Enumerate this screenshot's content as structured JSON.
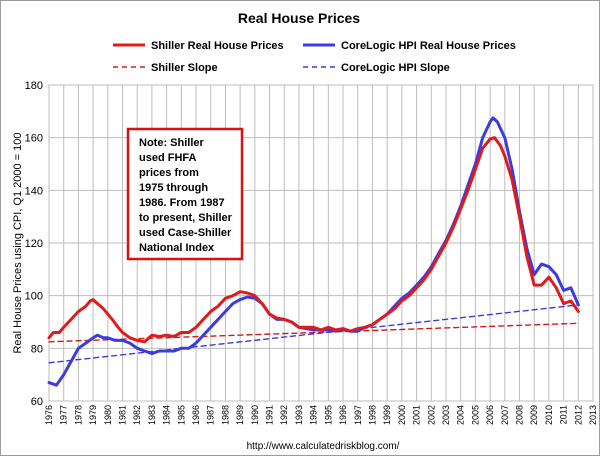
{
  "chart_data": {
    "type": "line",
    "title": "Real House Prices",
    "ylabel": "Real House Prices using CPI, Q1 2000 = 100",
    "xlabel": "",
    "source": "http://www.calculatedriskblog.com/",
    "xlim": [
      1976,
      2013
    ],
    "ylim": [
      60,
      180
    ],
    "yticks": [
      60,
      80,
      100,
      120,
      140,
      160,
      180
    ],
    "xticks": [
      "1976",
      "1977",
      "1978",
      "1979",
      "1980",
      "1981",
      "1982",
      "1983",
      "1984",
      "1985",
      "1986",
      "1987",
      "1988",
      "1989",
      "1990",
      "1991",
      "1992",
      "1993",
      "1994",
      "1995",
      "1996",
      "1997",
      "1998",
      "1999",
      "2000",
      "2001",
      "2002",
      "2003",
      "2004",
      "2005",
      "2006",
      "2007",
      "2008",
      "2009",
      "2010",
      "2011",
      "2012",
      "2013"
    ],
    "grid": true,
    "legend_position": "top",
    "note": [
      "Note: Shiller",
      "used FHFA",
      "prices from",
      "1975 through",
      "1986.  From 1987",
      "to present, Shiller",
      "used Case-Shiller",
      "National Index"
    ],
    "note_color": "#dd1111",
    "series": [
      {
        "name": "Shiller Real House Prices",
        "style": "solid",
        "color": "#e01b1b",
        "points": [
          [
            1976.0,
            84
          ],
          [
            1976.3,
            86
          ],
          [
            1976.7,
            86
          ],
          [
            1977.0,
            88
          ],
          [
            1977.5,
            91
          ],
          [
            1978.0,
            94
          ],
          [
            1978.5,
            96
          ],
          [
            1978.8,
            98
          ],
          [
            1979.0,
            98.5
          ],
          [
            1979.3,
            97
          ],
          [
            1979.7,
            95
          ],
          [
            1980.0,
            93
          ],
          [
            1980.3,
            91
          ],
          [
            1980.7,
            88
          ],
          [
            1981.0,
            86
          ],
          [
            1981.5,
            84
          ],
          [
            1982.0,
            83
          ],
          [
            1982.5,
            82.5
          ],
          [
            1983.0,
            85
          ],
          [
            1983.5,
            84.5
          ],
          [
            1984.0,
            85
          ],
          [
            1984.5,
            84.5
          ],
          [
            1985.0,
            86
          ],
          [
            1985.5,
            86
          ],
          [
            1986.0,
            88
          ],
          [
            1986.5,
            91
          ],
          [
            1987.0,
            94
          ],
          [
            1987.5,
            96
          ],
          [
            1988.0,
            99
          ],
          [
            1988.5,
            100
          ],
          [
            1989.0,
            101.5
          ],
          [
            1989.5,
            101
          ],
          [
            1990.0,
            100
          ],
          [
            1990.5,
            97
          ],
          [
            1991.0,
            93
          ],
          [
            1991.5,
            91.5
          ],
          [
            1992.0,
            91
          ],
          [
            1992.5,
            90
          ],
          [
            1993.0,
            88
          ],
          [
            1993.5,
            88
          ],
          [
            1994.0,
            88
          ],
          [
            1994.5,
            87
          ],
          [
            1995.0,
            88
          ],
          [
            1995.5,
            87
          ],
          [
            1996.0,
            87.5
          ],
          [
            1996.5,
            86.5
          ],
          [
            1997.0,
            87.5
          ],
          [
            1997.5,
            88
          ],
          [
            1998.0,
            89
          ],
          [
            1998.5,
            91
          ],
          [
            1999.0,
            93
          ],
          [
            1999.5,
            95
          ],
          [
            2000.0,
            98
          ],
          [
            2000.5,
            100
          ],
          [
            2001.0,
            103
          ],
          [
            2001.5,
            106
          ],
          [
            2002.0,
            110
          ],
          [
            2002.5,
            115
          ],
          [
            2003.0,
            120
          ],
          [
            2003.5,
            126
          ],
          [
            2004.0,
            133
          ],
          [
            2004.5,
            140
          ],
          [
            2005.0,
            148
          ],
          [
            2005.5,
            156
          ],
          [
            2006.0,
            159.5
          ],
          [
            2006.3,
            160
          ],
          [
            2006.7,
            157
          ],
          [
            2007.0,
            153
          ],
          [
            2007.5,
            144
          ],
          [
            2008.0,
            130
          ],
          [
            2008.5,
            115
          ],
          [
            2009.0,
            104
          ],
          [
            2009.5,
            104
          ],
          [
            2010.0,
            107
          ],
          [
            2010.5,
            103
          ],
          [
            2011.0,
            97
          ],
          [
            2011.5,
            98
          ],
          [
            2012.0,
            94
          ]
        ]
      },
      {
        "name": "CoreLogic HPI Real House Prices",
        "style": "solid",
        "color": "#3b3be0",
        "points": [
          [
            1976.0,
            67
          ],
          [
            1976.5,
            66
          ],
          [
            1977.0,
            70
          ],
          [
            1977.5,
            75
          ],
          [
            1978.0,
            80
          ],
          [
            1978.5,
            82
          ],
          [
            1979.0,
            84
          ],
          [
            1979.3,
            85
          ],
          [
            1979.7,
            84
          ],
          [
            1980.0,
            84
          ],
          [
            1980.5,
            83
          ],
          [
            1981.0,
            83
          ],
          [
            1981.5,
            82
          ],
          [
            1982.0,
            80
          ],
          [
            1982.5,
            79
          ],
          [
            1983.0,
            78
          ],
          [
            1983.5,
            79
          ],
          [
            1984.0,
            79
          ],
          [
            1984.5,
            79
          ],
          [
            1985.0,
            80
          ],
          [
            1985.5,
            80
          ],
          [
            1986.0,
            82
          ],
          [
            1986.5,
            85
          ],
          [
            1987.0,
            88
          ],
          [
            1987.5,
            91
          ],
          [
            1988.0,
            94
          ],
          [
            1988.5,
            97
          ],
          [
            1989.0,
            98.5
          ],
          [
            1989.5,
            99.5
          ],
          [
            1990.0,
            99
          ],
          [
            1990.5,
            97
          ],
          [
            1991.0,
            93
          ],
          [
            1991.5,
            91
          ],
          [
            1992.0,
            91
          ],
          [
            1992.5,
            90
          ],
          [
            1993.0,
            88
          ],
          [
            1993.5,
            87.5
          ],
          [
            1994.0,
            87
          ],
          [
            1994.5,
            87
          ],
          [
            1995.0,
            87
          ],
          [
            1995.5,
            86.5
          ],
          [
            1996.0,
            87
          ],
          [
            1996.5,
            86.5
          ],
          [
            1997.0,
            86.5
          ],
          [
            1997.5,
            88
          ],
          [
            1998.0,
            89
          ],
          [
            1998.5,
            91
          ],
          [
            1999.0,
            93
          ],
          [
            1999.5,
            96
          ],
          [
            2000.0,
            99
          ],
          [
            2000.5,
            101
          ],
          [
            2001.0,
            104
          ],
          [
            2001.5,
            107
          ],
          [
            2002.0,
            111
          ],
          [
            2002.5,
            116
          ],
          [
            2003.0,
            121
          ],
          [
            2003.5,
            127
          ],
          [
            2004.0,
            134
          ],
          [
            2004.5,
            142
          ],
          [
            2005.0,
            150
          ],
          [
            2005.5,
            160
          ],
          [
            2006.0,
            166
          ],
          [
            2006.2,
            167.5
          ],
          [
            2006.5,
            166
          ],
          [
            2007.0,
            160
          ],
          [
            2007.5,
            148
          ],
          [
            2008.0,
            132
          ],
          [
            2008.5,
            118
          ],
          [
            2009.0,
            108
          ],
          [
            2009.5,
            112
          ],
          [
            2010.0,
            111
          ],
          [
            2010.5,
            108
          ],
          [
            2011.0,
            102
          ],
          [
            2011.5,
            103
          ],
          [
            2012.0,
            96.5
          ]
        ]
      },
      {
        "name": "Shiller Slope",
        "style": "dashed",
        "color": "#d01b1b",
        "points": [
          [
            1976.0,
            82.5
          ],
          [
            2012.0,
            89.5
          ]
        ]
      },
      {
        "name": "CoreLogic HPI Slope",
        "style": "dashed",
        "color": "#3b3be0",
        "points": [
          [
            1976.0,
            74.5
          ],
          [
            2012.0,
            96.5
          ]
        ]
      }
    ]
  }
}
